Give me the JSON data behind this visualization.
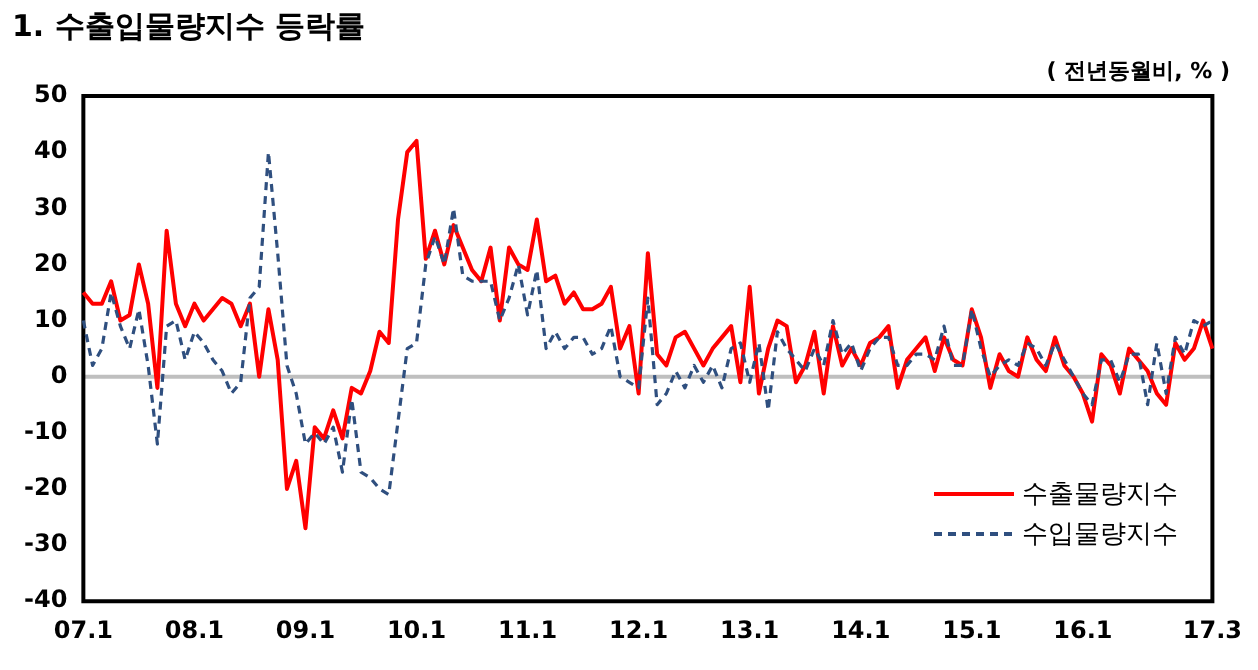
{
  "chart_data": {
    "type": "line",
    "title": "1. 수출입물량지수 등락률",
    "annotations": [
      "( 전년동월비, % )"
    ],
    "categories": [
      "07.1",
      null,
      null,
      null,
      null,
      null,
      null,
      null,
      null,
      null,
      null,
      null,
      "08.1",
      null,
      null,
      null,
      null,
      null,
      null,
      null,
      null,
      null,
      null,
      null,
      "09.1",
      null,
      null,
      null,
      null,
      null,
      null,
      null,
      null,
      null,
      null,
      null,
      "10.1",
      null,
      null,
      null,
      null,
      null,
      null,
      null,
      null,
      null,
      null,
      null,
      "11.1",
      null,
      null,
      null,
      null,
      null,
      null,
      null,
      null,
      null,
      null,
      null,
      "12.1",
      null,
      null,
      null,
      null,
      null,
      null,
      null,
      null,
      null,
      null,
      null,
      "13.1",
      null,
      null,
      null,
      null,
      null,
      null,
      null,
      null,
      null,
      null,
      null,
      "14.1",
      null,
      null,
      null,
      null,
      null,
      null,
      null,
      null,
      null,
      null,
      null,
      "15.1",
      null,
      null,
      null,
      null,
      null,
      null,
      null,
      null,
      null,
      null,
      null,
      "16.1",
      null,
      null,
      null,
      null,
      null,
      null,
      null,
      null,
      null,
      null,
      null,
      null,
      null,
      "17.3"
    ],
    "series": [
      {
        "name": "수출물량지수",
        "color": "#ff0000",
        "line_style": "solid",
        "values": [
          15,
          13,
          13,
          17,
          10,
          11,
          20,
          13,
          -2,
          26,
          13,
          9,
          13,
          10,
          12,
          14,
          13,
          9,
          13,
          0,
          12,
          3,
          -20,
          -15,
          -27,
          -9,
          -11,
          -6,
          -11,
          -2,
          -3,
          1,
          8,
          6,
          28,
          40,
          42,
          21,
          26,
          20,
          27,
          23,
          19,
          17,
          23,
          10,
          23,
          20,
          19,
          28,
          17,
          18,
          13,
          15,
          12,
          12,
          13,
          16,
          5,
          9,
          -3,
          22,
          4,
          2,
          7,
          8,
          5,
          2,
          5,
          7,
          9,
          -1,
          16,
          -3,
          5,
          10,
          9,
          -1,
          2,
          8,
          -3,
          9,
          2,
          5,
          2,
          6,
          7,
          9,
          -2,
          3,
          5,
          7,
          1,
          7,
          3,
          2,
          12,
          7,
          -2,
          4,
          1,
          0,
          7,
          3,
          1,
          7,
          2,
          0,
          -3,
          -8,
          4,
          2,
          -3,
          5,
          3,
          1,
          -3,
          -5,
          6,
          3,
          5,
          10,
          5
        ]
      },
      {
        "name": "수입물량지수",
        "color": "#2f4f7f",
        "line_style": "dashed",
        "values": [
          10,
          2,
          5,
          15,
          9,
          5,
          12,
          2,
          -12,
          9,
          10,
          3,
          8,
          6,
          3,
          1,
          -3,
          -1,
          14,
          16,
          40,
          22,
          2,
          -3,
          -12,
          -10,
          -12,
          -9,
          -17,
          -4,
          -17,
          -18,
          -20,
          -21,
          -8,
          5,
          6,
          20,
          25,
          20,
          30,
          18,
          17,
          17,
          17,
          10,
          14,
          20,
          11,
          19,
          5,
          8,
          5,
          7,
          7,
          4,
          5,
          9,
          0,
          -1,
          -2,
          14,
          -5,
          -3,
          1,
          -2,
          2,
          -1,
          2,
          -2,
          5,
          6,
          -1,
          6,
          -6,
          8,
          5,
          3,
          1,
          5,
          2,
          10,
          4,
          6,
          1,
          5,
          7,
          7,
          2,
          2,
          4,
          4,
          3,
          9,
          2,
          2,
          12,
          5,
          0,
          2,
          3,
          2,
          6,
          5,
          2,
          6,
          3,
          0,
          -3,
          -5,
          3,
          3,
          -1,
          4,
          4,
          -5,
          6,
          -3,
          7,
          4,
          10,
          9,
          10
        ]
      }
    ],
    "ylim": [
      -40,
      50
    ],
    "yticks": [
      -40,
      -30,
      -20,
      -10,
      0,
      10,
      20,
      30,
      40,
      50
    ],
    "grid": false,
    "legend": "bottom right",
    "ref_lines": [
      {
        "axis": "y",
        "value": 0,
        "color": "#bfbfbf"
      }
    ]
  }
}
